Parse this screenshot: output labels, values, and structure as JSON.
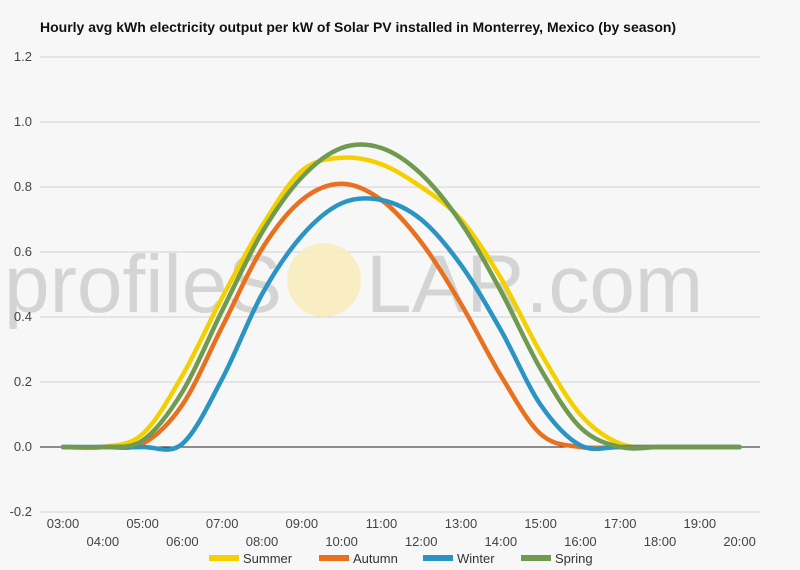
{
  "chart_data": {
    "type": "line",
    "title": "Hourly avg kWh electricity output per kW of Solar PV installed in Monterrey, Mexico (by season)",
    "xlabel": "",
    "ylabel": "",
    "x": [
      "03:00",
      "04:00",
      "05:00",
      "06:00",
      "07:00",
      "08:00",
      "09:00",
      "10:00",
      "11:00",
      "12:00",
      "13:00",
      "14:00",
      "15:00",
      "16:00",
      "17:00",
      "18:00",
      "19:00",
      "20:00"
    ],
    "ylim": [
      -0.2,
      1.2
    ],
    "yticks": [
      -0.2,
      0.0,
      0.2,
      0.4,
      0.6,
      0.8,
      1.0,
      1.2
    ],
    "grid": true,
    "legend_position": "bottom",
    "watermark": "profileSOLAR.com",
    "series": [
      {
        "name": "Summer",
        "color": "#f5d000",
        "values": [
          0,
          0,
          0.04,
          0.22,
          0.46,
          0.68,
          0.85,
          0.89,
          0.87,
          0.8,
          0.7,
          0.52,
          0.29,
          0.1,
          0.01,
          0,
          0,
          0
        ]
      },
      {
        "name": "Autumn",
        "color": "#e8701f",
        "values": [
          0,
          0,
          0.01,
          0.13,
          0.37,
          0.61,
          0.76,
          0.81,
          0.76,
          0.63,
          0.44,
          0.22,
          0.04,
          0,
          0,
          0,
          0,
          0
        ]
      },
      {
        "name": "Winter",
        "color": "#2b94c3",
        "values": [
          0,
          0,
          0,
          0.01,
          0.21,
          0.47,
          0.65,
          0.75,
          0.76,
          0.7,
          0.56,
          0.36,
          0.13,
          0.005,
          0,
          0,
          0,
          0
        ]
      },
      {
        "name": "Spring",
        "color": "#6f9a50",
        "values": [
          0,
          0,
          0.02,
          0.17,
          0.42,
          0.66,
          0.83,
          0.92,
          0.92,
          0.84,
          0.69,
          0.48,
          0.24,
          0.06,
          0,
          0,
          0,
          0
        ]
      }
    ]
  }
}
